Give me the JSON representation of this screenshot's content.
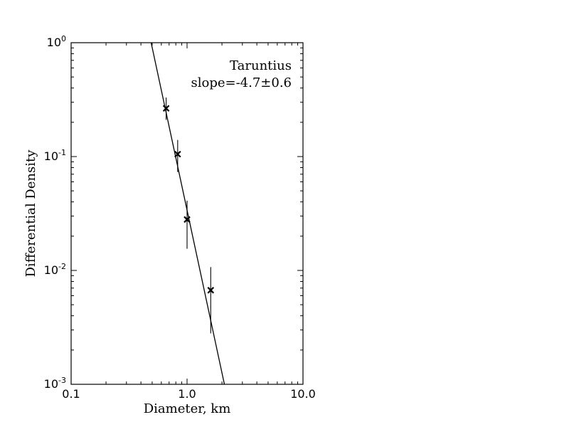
{
  "chart_data": {
    "type": "scatter",
    "title": "",
    "xlabel": "Diameter, km",
    "ylabel": "Differential Density",
    "x_scale": "log",
    "y_scale": "log",
    "xlim": [
      0.1,
      10.0
    ],
    "ylim": [
      0.001,
      1.0
    ],
    "x_ticks": [
      {
        "value": 0.1,
        "label": "0.1"
      },
      {
        "value": 1.0,
        "label": "1.0"
      },
      {
        "value": 10.0,
        "label": "10.0"
      }
    ],
    "y_ticks": [
      {
        "value": 0.001,
        "base": "10",
        "exp": "-3"
      },
      {
        "value": 0.01,
        "base": "10",
        "exp": "-2"
      },
      {
        "value": 0.1,
        "base": "10",
        "exp": "-1"
      },
      {
        "value": 1.0,
        "base": "10",
        "exp": "0"
      }
    ],
    "grid": false,
    "annotation": {
      "name": "Taruntius",
      "slope_text": "slope=-4.7±0.6"
    },
    "points": [
      {
        "x": 0.66,
        "y": 0.265,
        "y_low": 0.21,
        "y_high": 0.33
      },
      {
        "x": 0.83,
        "y": 0.105,
        "y_low": 0.073,
        "y_high": 0.14
      },
      {
        "x": 1.0,
        "y": 0.028,
        "y_low": 0.0155,
        "y_high": 0.041
      },
      {
        "x": 1.6,
        "y": 0.0067,
        "y_low": 0.0028,
        "y_high": 0.0107
      }
    ],
    "fit_line": {
      "slope": -4.7,
      "x": [
        0.49,
        2.1
      ],
      "y": [
        1.0,
        0.001
      ]
    }
  }
}
